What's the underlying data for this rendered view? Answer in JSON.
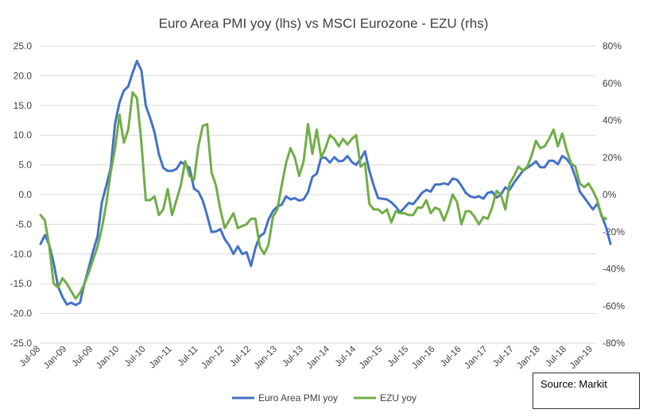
{
  "chart_data": {
    "type": "line",
    "title": "Euro Area PMI yoy (lhs) vs MSCI Eurozone - EZU (rhs)",
    "xlabel": "",
    "ylabel_left": "",
    "ylabel_right": "",
    "x_tick_labels": [
      "Jul-08",
      "Jan-09",
      "Jul-09",
      "Jan-10",
      "Jul-10",
      "Jan-11",
      "Jul-11",
      "Jan-12",
      "Jul-12",
      "Jan-13",
      "Jul-13",
      "Jan-14",
      "Jul-14",
      "Jan-15",
      "Jul-15",
      "Jan-16",
      "Jul-16",
      "Jan-17",
      "Jul-17",
      "Jan-18",
      "Jul-18",
      "Jan-19"
    ],
    "y_left_ticks": [
      "25.0",
      "20.0",
      "15.0",
      "10.0",
      "5.0",
      "0.0",
      "-5.0",
      "-10.0",
      "-15.0",
      "-20.0",
      "-25.0"
    ],
    "y_right_ticks": [
      "80%",
      "60%",
      "40%",
      "20%",
      "0%",
      "-20%",
      "-40%",
      "-60%",
      "-80%"
    ],
    "ylim_left": [
      -25,
      25
    ],
    "ylim_right": [
      -80,
      80
    ],
    "grid": true,
    "legend_position": "bottom",
    "source": "Source: Markit",
    "series": [
      {
        "name": "Euro Area PMI yoy",
        "axis": "left",
        "color": "#4472c4",
        "start": "Jul-08",
        "values": [
          -8.3,
          -6.8,
          -8.5,
          -11.5,
          -15.5,
          -17.2,
          -18.5,
          -18.2,
          -18.6,
          -18.2,
          -15,
          -12.3,
          -9.5,
          -7,
          -1.3,
          1.5,
          4.5,
          12,
          15.5,
          17.5,
          18.2,
          20.5,
          22.5,
          20.9,
          15,
          12.9,
          10.5,
          6.8,
          4.5,
          4,
          4,
          4.3,
          5.5,
          5,
          4.5,
          1,
          0.5,
          -1,
          -3.5,
          -6.3,
          -6.2,
          -5.8,
          -7.5,
          -8.5,
          -10,
          -8.7,
          -10,
          -9.7,
          -12,
          -9,
          -7,
          -6.5,
          -4.2,
          -2.8,
          -2,
          -1.7,
          -0.3,
          -0.8,
          -0.6,
          -1,
          -0.8,
          0.4,
          3,
          3.5,
          6.2,
          6.2,
          5.4,
          6.3,
          5.6,
          5.7,
          6.5,
          5.5,
          5,
          6,
          7.3,
          4,
          1.5,
          -0.6,
          -0.7,
          -0.8,
          -1.3,
          -2,
          -3,
          -2.2,
          -1.4,
          -1.6,
          -0.7,
          0.3,
          0.8,
          0.5,
          1.7,
          1.7,
          1.9,
          1.7,
          2.7,
          2.5,
          1.5,
          0.3,
          -0.3,
          -0.5,
          -0.3,
          -0.7,
          0.3,
          0.5,
          -0.5,
          0,
          1.2,
          0.8,
          2,
          3,
          4,
          4.5,
          5,
          5.6,
          4.6,
          4.6,
          5.7,
          5.7,
          5.1,
          6.5,
          6,
          5,
          3,
          0.5,
          -0.5,
          -1.5,
          -2.5,
          -1.5,
          -3.5,
          -5.5,
          -8.3
        ]
      },
      {
        "name": "EZU yoy",
        "axis": "right",
        "color": "#70ad47",
        "start": "Jul-08",
        "values": [
          -11,
          -14,
          -28,
          -48,
          -50,
          -45,
          -48,
          -52,
          -56,
          -53,
          -48,
          -42,
          -35,
          -28,
          -18,
          -5,
          12,
          25,
          43,
          28,
          35,
          55,
          52,
          28,
          -3,
          -3,
          -1,
          -11,
          -8,
          3,
          -11,
          -3,
          5,
          18,
          10,
          8,
          26,
          37,
          38,
          12,
          5,
          -8,
          -18,
          -14,
          -10,
          -18,
          -17,
          -16,
          -13,
          -13,
          -28,
          -32,
          -27,
          -12,
          -8,
          5,
          17,
          25,
          20,
          10,
          18,
          38,
          22,
          35,
          20,
          25,
          32,
          30,
          26,
          30,
          27,
          30,
          32,
          15,
          17,
          -5,
          -8,
          -8,
          -10,
          -8,
          -15,
          -9,
          -10,
          -10,
          -11,
          -11,
          -7,
          -7,
          -3,
          -10,
          -7,
          -8,
          -14,
          -8,
          0,
          -4,
          -16,
          -9,
          -9,
          -12,
          -16,
          -12,
          -13,
          -7,
          2,
          0,
          -8,
          6,
          10,
          15,
          13,
          15,
          21,
          29,
          25,
          26,
          30,
          35,
          26,
          33,
          24,
          17,
          15,
          6,
          4,
          6,
          2,
          -3,
          -12,
          -13
        ]
      }
    ]
  }
}
